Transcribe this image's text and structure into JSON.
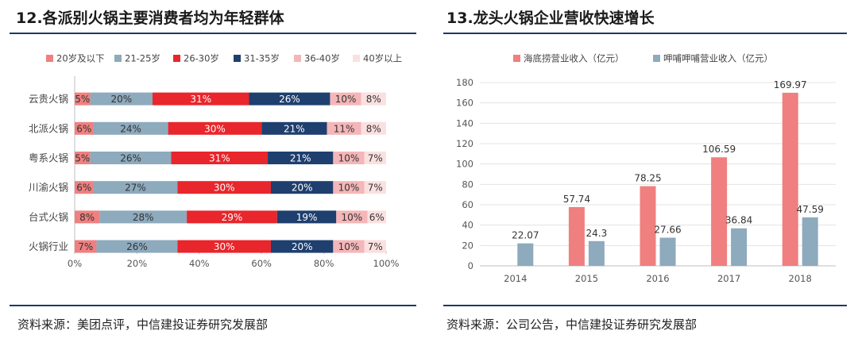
{
  "chart_data": [
    {
      "type": "stacked-bar-horizontal",
      "title": "12.各派别火锅主要消费者均为年轻群体",
      "source": "资料来源：美团点评，中信建投证券研究发展部",
      "categories": [
        "云贵火锅",
        "北派火锅",
        "粤系火锅",
        "川渝火锅",
        "台式火锅",
        "火锅行业"
      ],
      "series": [
        {
          "name": "20岁及以下",
          "color": "#f08080",
          "values": [
            5,
            6,
            5,
            6,
            8,
            7
          ]
        },
        {
          "name": "21-25岁",
          "color": "#8eaabd",
          "values": [
            20,
            24,
            26,
            27,
            28,
            26
          ]
        },
        {
          "name": "26-30岁",
          "color": "#e8262c",
          "values": [
            31,
            30,
            31,
            30,
            29,
            30
          ]
        },
        {
          "name": "31-35岁",
          "color": "#1f3f6e",
          "values": [
            26,
            21,
            21,
            20,
            19,
            20
          ]
        },
        {
          "name": "36-40岁",
          "color": "#f4b6b8",
          "values": [
            10,
            11,
            10,
            10,
            10,
            10
          ]
        },
        {
          "name": "40岁以上",
          "color": "#fbe0e0",
          "values": [
            8,
            8,
            7,
            7,
            6,
            7
          ]
        }
      ],
      "data_labels": [
        [
          "5%",
          "20%",
          "31%",
          "26%",
          "10%",
          "8%"
        ],
        [
          "6%",
          "24%",
          "30%",
          "21%",
          "11%",
          "8%"
        ],
        [
          "5%",
          "26%",
          "31%",
          "21%",
          "10%",
          "7%"
        ],
        [
          "6%",
          "27%",
          "30%",
          "20%",
          "10%",
          "7%"
        ],
        [
          "8%",
          "28%",
          "29%",
          "19%",
          "10%",
          "6%"
        ],
        [
          "7%",
          "26%",
          "30%",
          "20%",
          "10%",
          "7%"
        ]
      ],
      "xlim": [
        0,
        100
      ],
      "xticks": [
        "0%",
        "20%",
        "40%",
        "60%",
        "80%",
        "100%"
      ],
      "legend_position": "top"
    },
    {
      "type": "bar",
      "title": "13.龙头火锅企业营收快速增长",
      "source": "资料来源：公司公告，中信建投证券研究发展部",
      "categories": [
        "2014",
        "2015",
        "2016",
        "2017",
        "2018"
      ],
      "series": [
        {
          "name": "海底捞营业收入（亿元）",
          "color": "#f07f7f",
          "values": [
            null,
            57.74,
            78.25,
            106.59,
            169.97
          ],
          "labels": [
            "",
            "57.74",
            "78.25",
            "106.59",
            "169.97"
          ]
        },
        {
          "name": "呷哺呷哺营业收入（亿元）",
          "color": "#8eaabd",
          "values": [
            22.07,
            24.3,
            27.66,
            36.84,
            47.59
          ],
          "labels": [
            "22.07",
            "24.3",
            "27.66",
            "36.84",
            "47.59"
          ]
        }
      ],
      "ylim": [
        0,
        180
      ],
      "yticks": [
        "0",
        "20",
        "40",
        "60",
        "80",
        "100",
        "120",
        "140",
        "160",
        "180"
      ],
      "grid": true,
      "legend_position": "top"
    }
  ]
}
